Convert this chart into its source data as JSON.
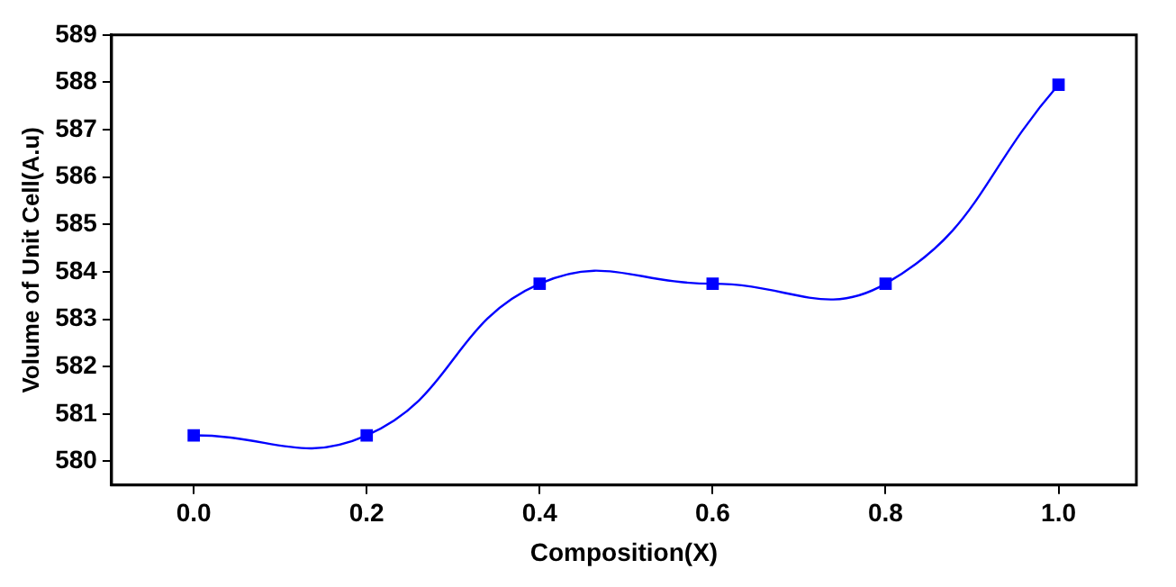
{
  "chart_data": {
    "type": "line",
    "xlabel": "Composition(X)",
    "ylabel": "Volume of Unit Cell(A.u)",
    "x": [
      0,
      0.2,
      0.4,
      0.6,
      0.8,
      1.0
    ],
    "series": [
      {
        "color": "#0000ff",
        "values": [
          580.55,
          580.55,
          583.75,
          583.75,
          583.75,
          587.95
        ]
      }
    ],
    "xlim": [
      -0.095,
      1.09
    ],
    "xticks": [
      {
        "value": 0,
        "label": "0.0"
      },
      {
        "value": 0.2,
        "label": "0.2"
      },
      {
        "value": 0.4,
        "label": "0.4"
      },
      {
        "value": 0.6,
        "label": "0.6"
      },
      {
        "value": 0.8,
        "label": "0.8"
      },
      {
        "value": 1,
        "label": "1.0"
      }
    ],
    "ylim": [
      579.5,
      589
    ],
    "yticks": [
      580,
      581,
      582,
      583,
      584,
      585,
      586,
      587,
      588,
      589
    ],
    "grid": false,
    "legend": false,
    "marker": "square",
    "line_style": "solid"
  }
}
